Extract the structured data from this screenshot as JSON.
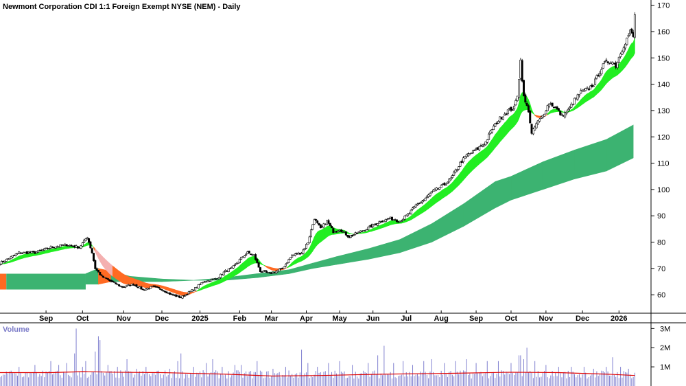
{
  "window": {
    "title": "Newmont Corporation CDI 1:1 Foreign Exempt NYSE (NEM) - Daily"
  },
  "colors": {
    "background": "#ffffff",
    "short_ribbon_up": "#22ee22",
    "short_ribbon_down": "#ff6a22",
    "long_ribbon_up": "#3cb371",
    "long_ribbon_down": "#ff6a22",
    "short_ribbon_fade": "#f4b0b0",
    "volume_bars": "#8080d0",
    "volume_average": "#e00000",
    "candle_up": "#ffffff",
    "candle_down": "#000000",
    "grid_border": "#000000"
  },
  "chart_data": [
    {
      "type": "candlestick",
      "title": "Newmont Corporation CDI 1:1 Foreign Exempt NYSE (NEM) - Daily",
      "xlabel": "",
      "ylabel": "",
      "ylim": [
        53,
        172
      ],
      "y_ticks": [
        60,
        70,
        80,
        90,
        100,
        110,
        120,
        130,
        140,
        150,
        160,
        170
      ],
      "x_tick_labels": [
        "Sep",
        "Oct",
        "Nov",
        "Dec",
        "2025",
        "Feb",
        "Mar",
        "Apr",
        "May",
        "Jun",
        "Jul",
        "Aug",
        "Sep",
        "Oct",
        "Nov",
        "Dec",
        "2026"
      ],
      "x_tick_positions": [
        7,
        30,
        56,
        80,
        104,
        129,
        149,
        171,
        192,
        213,
        234,
        256,
        278,
        300,
        322,
        345,
        368
      ],
      "x_range": [
        -22,
        383
      ],
      "close_anchors": [
        [
          -22,
          72
        ],
        [
          -10,
          76
        ],
        [
          0,
          76
        ],
        [
          10,
          78
        ],
        [
          20,
          79
        ],
        [
          28,
          78
        ],
        [
          33,
          82
        ],
        [
          36,
          76
        ],
        [
          38,
          70
        ],
        [
          42,
          67
        ],
        [
          48,
          65
        ],
        [
          55,
          63
        ],
        [
          62,
          64
        ],
        [
          68,
          62
        ],
        [
          74,
          63
        ],
        [
          80,
          62
        ],
        [
          86,
          60
        ],
        [
          92,
          59
        ],
        [
          100,
          62
        ],
        [
          106,
          65
        ],
        [
          114,
          66
        ],
        [
          120,
          69
        ],
        [
          124,
          70
        ],
        [
          130,
          74
        ],
        [
          134,
          76
        ],
        [
          138,
          75
        ],
        [
          142,
          69
        ],
        [
          148,
          68
        ],
        [
          156,
          70
        ],
        [
          162,
          75
        ],
        [
          168,
          76
        ],
        [
          172,
          80
        ],
        [
          176,
          89
        ],
        [
          180,
          85
        ],
        [
          184,
          88
        ],
        [
          188,
          84
        ],
        [
          192,
          85
        ],
        [
          198,
          82
        ],
        [
          205,
          84
        ],
        [
          212,
          86
        ],
        [
          218,
          88
        ],
        [
          224,
          89
        ],
        [
          230,
          88
        ],
        [
          236,
          91
        ],
        [
          240,
          94
        ],
        [
          245,
          96
        ],
        [
          250,
          99
        ],
        [
          256,
          101
        ],
        [
          262,
          104
        ],
        [
          268,
          110
        ],
        [
          272,
          113
        ],
        [
          278,
          115
        ],
        [
          284,
          118
        ],
        [
          288,
          123
        ],
        [
          293,
          127
        ],
        [
          298,
          130
        ],
        [
          302,
          131
        ],
        [
          304,
          136
        ],
        [
          306,
          149
        ],
        [
          308,
          135
        ],
        [
          309,
          133
        ],
        [
          311,
          130
        ],
        [
          313,
          121
        ],
        [
          316,
          125
        ],
        [
          320,
          128
        ],
        [
          324,
          133
        ],
        [
          328,
          131
        ],
        [
          332,
          128
        ],
        [
          336,
          130
        ],
        [
          340,
          134
        ],
        [
          344,
          137
        ],
        [
          348,
          138
        ],
        [
          352,
          140
        ],
        [
          356,
          145
        ],
        [
          359,
          148
        ],
        [
          363,
          149
        ],
        [
          366,
          147
        ],
        [
          369,
          152
        ],
        [
          372,
          156
        ],
        [
          375,
          160
        ],
        [
          377,
          158
        ],
        [
          378,
          166
        ]
      ],
      "short_ribbon": {
        "fast_ema_days": 10,
        "slow_ema_days": 25,
        "colors": {
          "up": "#22ee22",
          "down": "#ff6a22"
        }
      },
      "long_ribbon": {
        "start_x": 32,
        "knots": [
          [
            32,
            68,
            64
          ],
          [
            40,
            70,
            64
          ],
          [
            48,
            69,
            65
          ],
          [
            60,
            67,
            65
          ],
          [
            80,
            66,
            65
          ],
          [
            100,
            65.5,
            65.5
          ],
          [
            120,
            66.5,
            65.5
          ],
          [
            140,
            68,
            66.5
          ],
          [
            160,
            69.5,
            68
          ],
          [
            175,
            72,
            70
          ],
          [
            190,
            74.5,
            71.5
          ],
          [
            210,
            77.5,
            73.5
          ],
          [
            230,
            81,
            76
          ],
          [
            250,
            87,
            80
          ],
          [
            270,
            94.5,
            86
          ],
          [
            290,
            103,
            93
          ],
          [
            300,
            105,
            96
          ],
          [
            320,
            110.5,
            100
          ],
          [
            340,
            115,
            104
          ],
          [
            360,
            119,
            107
          ],
          [
            377,
            124.5,
            112
          ]
        ],
        "orange_segments": [
          [
            -22,
            -18
          ],
          [
            33,
            45
          ],
          [
            138,
            140
          ]
        ],
        "orange_band_pre": {
          "x": [
            -22,
            -18
          ],
          "top": 68,
          "bottom": 62
        }
      }
    },
    {
      "type": "bar",
      "title": "Volume",
      "ylim": [
        0,
        3300000
      ],
      "y_ticks": [
        1000000,
        2000000,
        3000000
      ],
      "y_tick_labels": [
        "1M",
        "2M",
        "3M"
      ],
      "spikes": [
        [
          -20,
          0.6
        ],
        [
          -15,
          0.8
        ],
        [
          -10,
          1.0
        ],
        [
          -5,
          0.7
        ],
        [
          0,
          1.1
        ],
        [
          5,
          0.8
        ],
        [
          10,
          1.3
        ],
        [
          15,
          1.1
        ],
        [
          20,
          1.2
        ],
        [
          25,
          1.7
        ],
        [
          26,
          3.0
        ],
        [
          30,
          1.0
        ],
        [
          32,
          1.3
        ],
        [
          38,
          1.8
        ],
        [
          40,
          2.6
        ],
        [
          41,
          2.4
        ],
        [
          46,
          1.1
        ],
        [
          52,
          1.0
        ],
        [
          58,
          1.4
        ],
        [
          64,
          0.9
        ],
        [
          70,
          1.0
        ],
        [
          78,
          0.8
        ],
        [
          85,
          0.9
        ],
        [
          90,
          1.3
        ],
        [
          92,
          1.7
        ],
        [
          100,
          1.0
        ],
        [
          108,
          1.2
        ],
        [
          112,
          1.4
        ],
        [
          118,
          1.0
        ],
        [
          126,
          1.1
        ],
        [
          130,
          1.1
        ],
        [
          140,
          1.3
        ],
        [
          150,
          0.9
        ],
        [
          158,
          1.0
        ],
        [
          168,
          1.9
        ],
        [
          172,
          1.2
        ],
        [
          178,
          1.0
        ],
        [
          185,
          1.2
        ],
        [
          192,
          1.3
        ],
        [
          200,
          1.1
        ],
        [
          210,
          1.2
        ],
        [
          216,
          1.6
        ],
        [
          220,
          2.1
        ],
        [
          226,
          1.2
        ],
        [
          232,
          1.3
        ],
        [
          238,
          1.1
        ],
        [
          245,
          1.3
        ],
        [
          250,
          1.4
        ],
        [
          258,
          1.2
        ],
        [
          265,
          1.3
        ],
        [
          272,
          1.4
        ],
        [
          278,
          1.2
        ],
        [
          285,
          1.3
        ],
        [
          292,
          1.3
        ],
        [
          300,
          1.2
        ],
        [
          305,
          1.6
        ],
        [
          306,
          1.6
        ],
        [
          308,
          1.4
        ],
        [
          310,
          2.0
        ],
        [
          315,
          1.3
        ],
        [
          322,
          1.1
        ],
        [
          330,
          1.0
        ],
        [
          338,
          1.0
        ],
        [
          346,
          1.0
        ],
        [
          352,
          0.9
        ],
        [
          360,
          1.0
        ],
        [
          364,
          1.5
        ],
        [
          369,
          1.0
        ],
        [
          374,
          0.9
        ]
      ],
      "base_level_millions": 0.55,
      "average_line_millions": [
        [
          -22,
          0.7
        ],
        [
          10,
          0.7
        ],
        [
          30,
          0.75
        ],
        [
          50,
          0.72
        ],
        [
          80,
          0.7
        ],
        [
          120,
          0.62
        ],
        [
          150,
          0.52
        ],
        [
          180,
          0.55
        ],
        [
          220,
          0.62
        ],
        [
          260,
          0.66
        ],
        [
          300,
          0.72
        ],
        [
          330,
          0.7
        ],
        [
          360,
          0.62
        ],
        [
          378,
          0.55
        ]
      ]
    }
  ]
}
